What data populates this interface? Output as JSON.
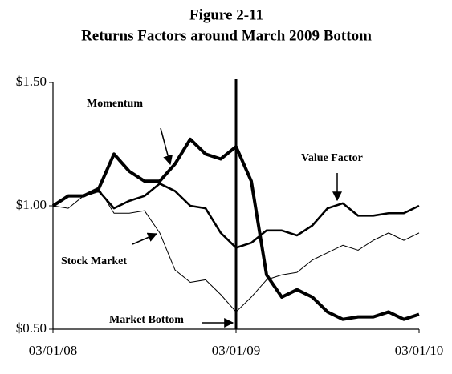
{
  "chart_data": {
    "type": "line",
    "title": "Figure 2-11",
    "subtitle": "Returns Factors around March 2009 Bottom",
    "categories": [
      "03/01/08",
      null,
      null,
      null,
      null,
      null,
      null,
      null,
      null,
      null,
      null,
      null,
      "03/01/09",
      null,
      null,
      null,
      null,
      null,
      null,
      null,
      null,
      null,
      null,
      null,
      "03/01/10"
    ],
    "ylim": [
      0.5,
      1.5
    ],
    "yticks": [
      {
        "value": 0.5,
        "label": "$0.50"
      },
      {
        "value": 1.0,
        "label": "$1.00"
      },
      {
        "value": 1.5,
        "label": "$1.50"
      }
    ],
    "grid": false,
    "annotation": "Market Bottom",
    "series": [
      {
        "name": "Momentum",
        "color": "#000000",
        "values": [
          1.0,
          1.04,
          1.04,
          1.07,
          1.21,
          1.14,
          1.1,
          1.1,
          1.17,
          1.27,
          1.21,
          1.19,
          1.24,
          1.1,
          0.72,
          0.63,
          0.66,
          0.63,
          0.57,
          0.54,
          0.55,
          0.55,
          0.57,
          0.54,
          0.56
        ]
      },
      {
        "name": "Value Factor",
        "color": "#000000",
        "values": [
          1.0,
          1.04,
          1.04,
          1.06,
          0.99,
          1.02,
          1.04,
          1.09,
          1.06,
          1.0,
          0.99,
          0.89,
          0.83,
          0.85,
          0.9,
          0.9,
          0.88,
          0.92,
          0.99,
          1.01,
          0.96,
          0.96,
          0.97,
          0.97,
          1.0
        ]
      },
      {
        "name": "Stock Market",
        "color": "#000000",
        "values": [
          1.0,
          0.99,
          1.04,
          1.07,
          0.97,
          0.97,
          0.98,
          0.89,
          0.74,
          0.69,
          0.7,
          0.64,
          0.57,
          0.63,
          0.7,
          0.72,
          0.73,
          0.78,
          0.81,
          0.84,
          0.82,
          0.86,
          0.89,
          0.86,
          0.89
        ]
      }
    ]
  }
}
